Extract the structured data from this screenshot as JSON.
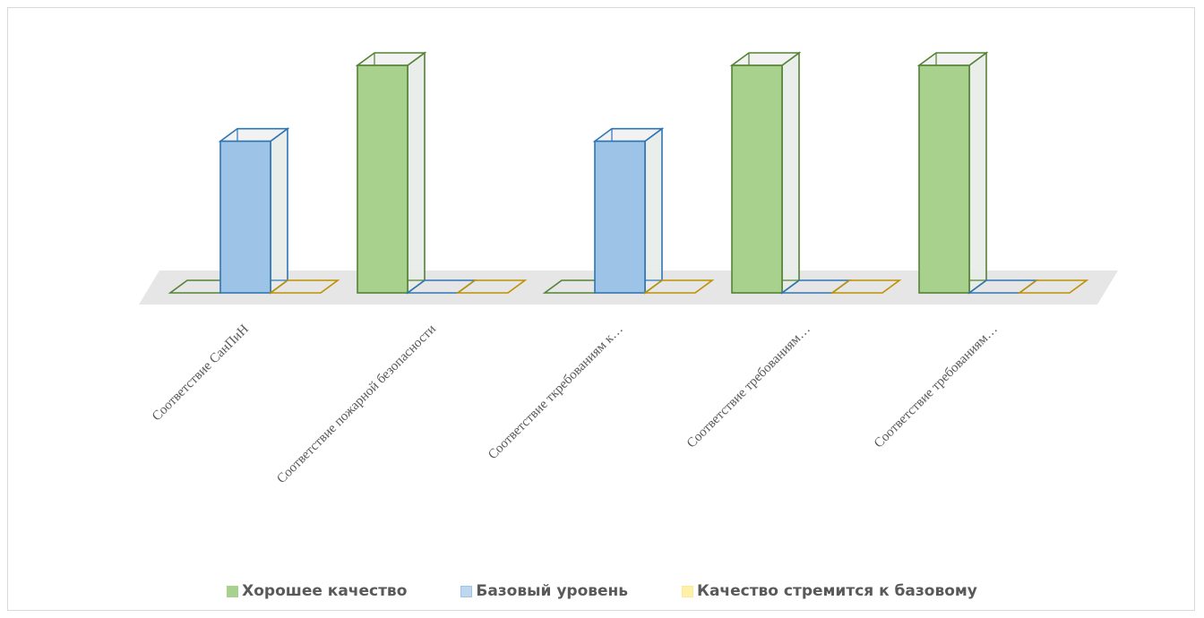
{
  "chart_data": {
    "type": "bar",
    "categories": [
      "Соответствие СанПиН",
      "Соответствие пожарной безопасности",
      "Соответствие ткребованиям к…",
      "Соответствие требованиям…",
      "Соответствие требованиям…"
    ],
    "series": [
      {
        "name": "Хорошее качество",
        "values": [
          0,
          3,
          0,
          3,
          3
        ],
        "fill": "#a9d18e",
        "stroke": "#548235"
      },
      {
        "name": "Базовый уровень",
        "values": [
          2,
          0,
          2,
          0,
          0
        ],
        "fill": "#9dc3e6",
        "stroke": "#2e75b6"
      },
      {
        "name": "Качество стремится к базовому",
        "values": [
          0,
          0,
          0,
          0,
          0
        ],
        "fill": "#ffe699",
        "stroke": "#bf9000"
      }
    ],
    "ylim": [
      0,
      3
    ],
    "grid": false,
    "legend_position": "bottom"
  },
  "legend": {
    "items": [
      {
        "label": "Хорошее качество",
        "fill": "#a9d18e",
        "stroke": "#a9d18e"
      },
      {
        "label": "Базовый уровень",
        "fill": "#bdd7ee",
        "stroke": "#9dc3e6"
      },
      {
        "label": "Качество стремится к базовому",
        "fill": "#fff2a8",
        "stroke": "#ffe699"
      }
    ]
  }
}
